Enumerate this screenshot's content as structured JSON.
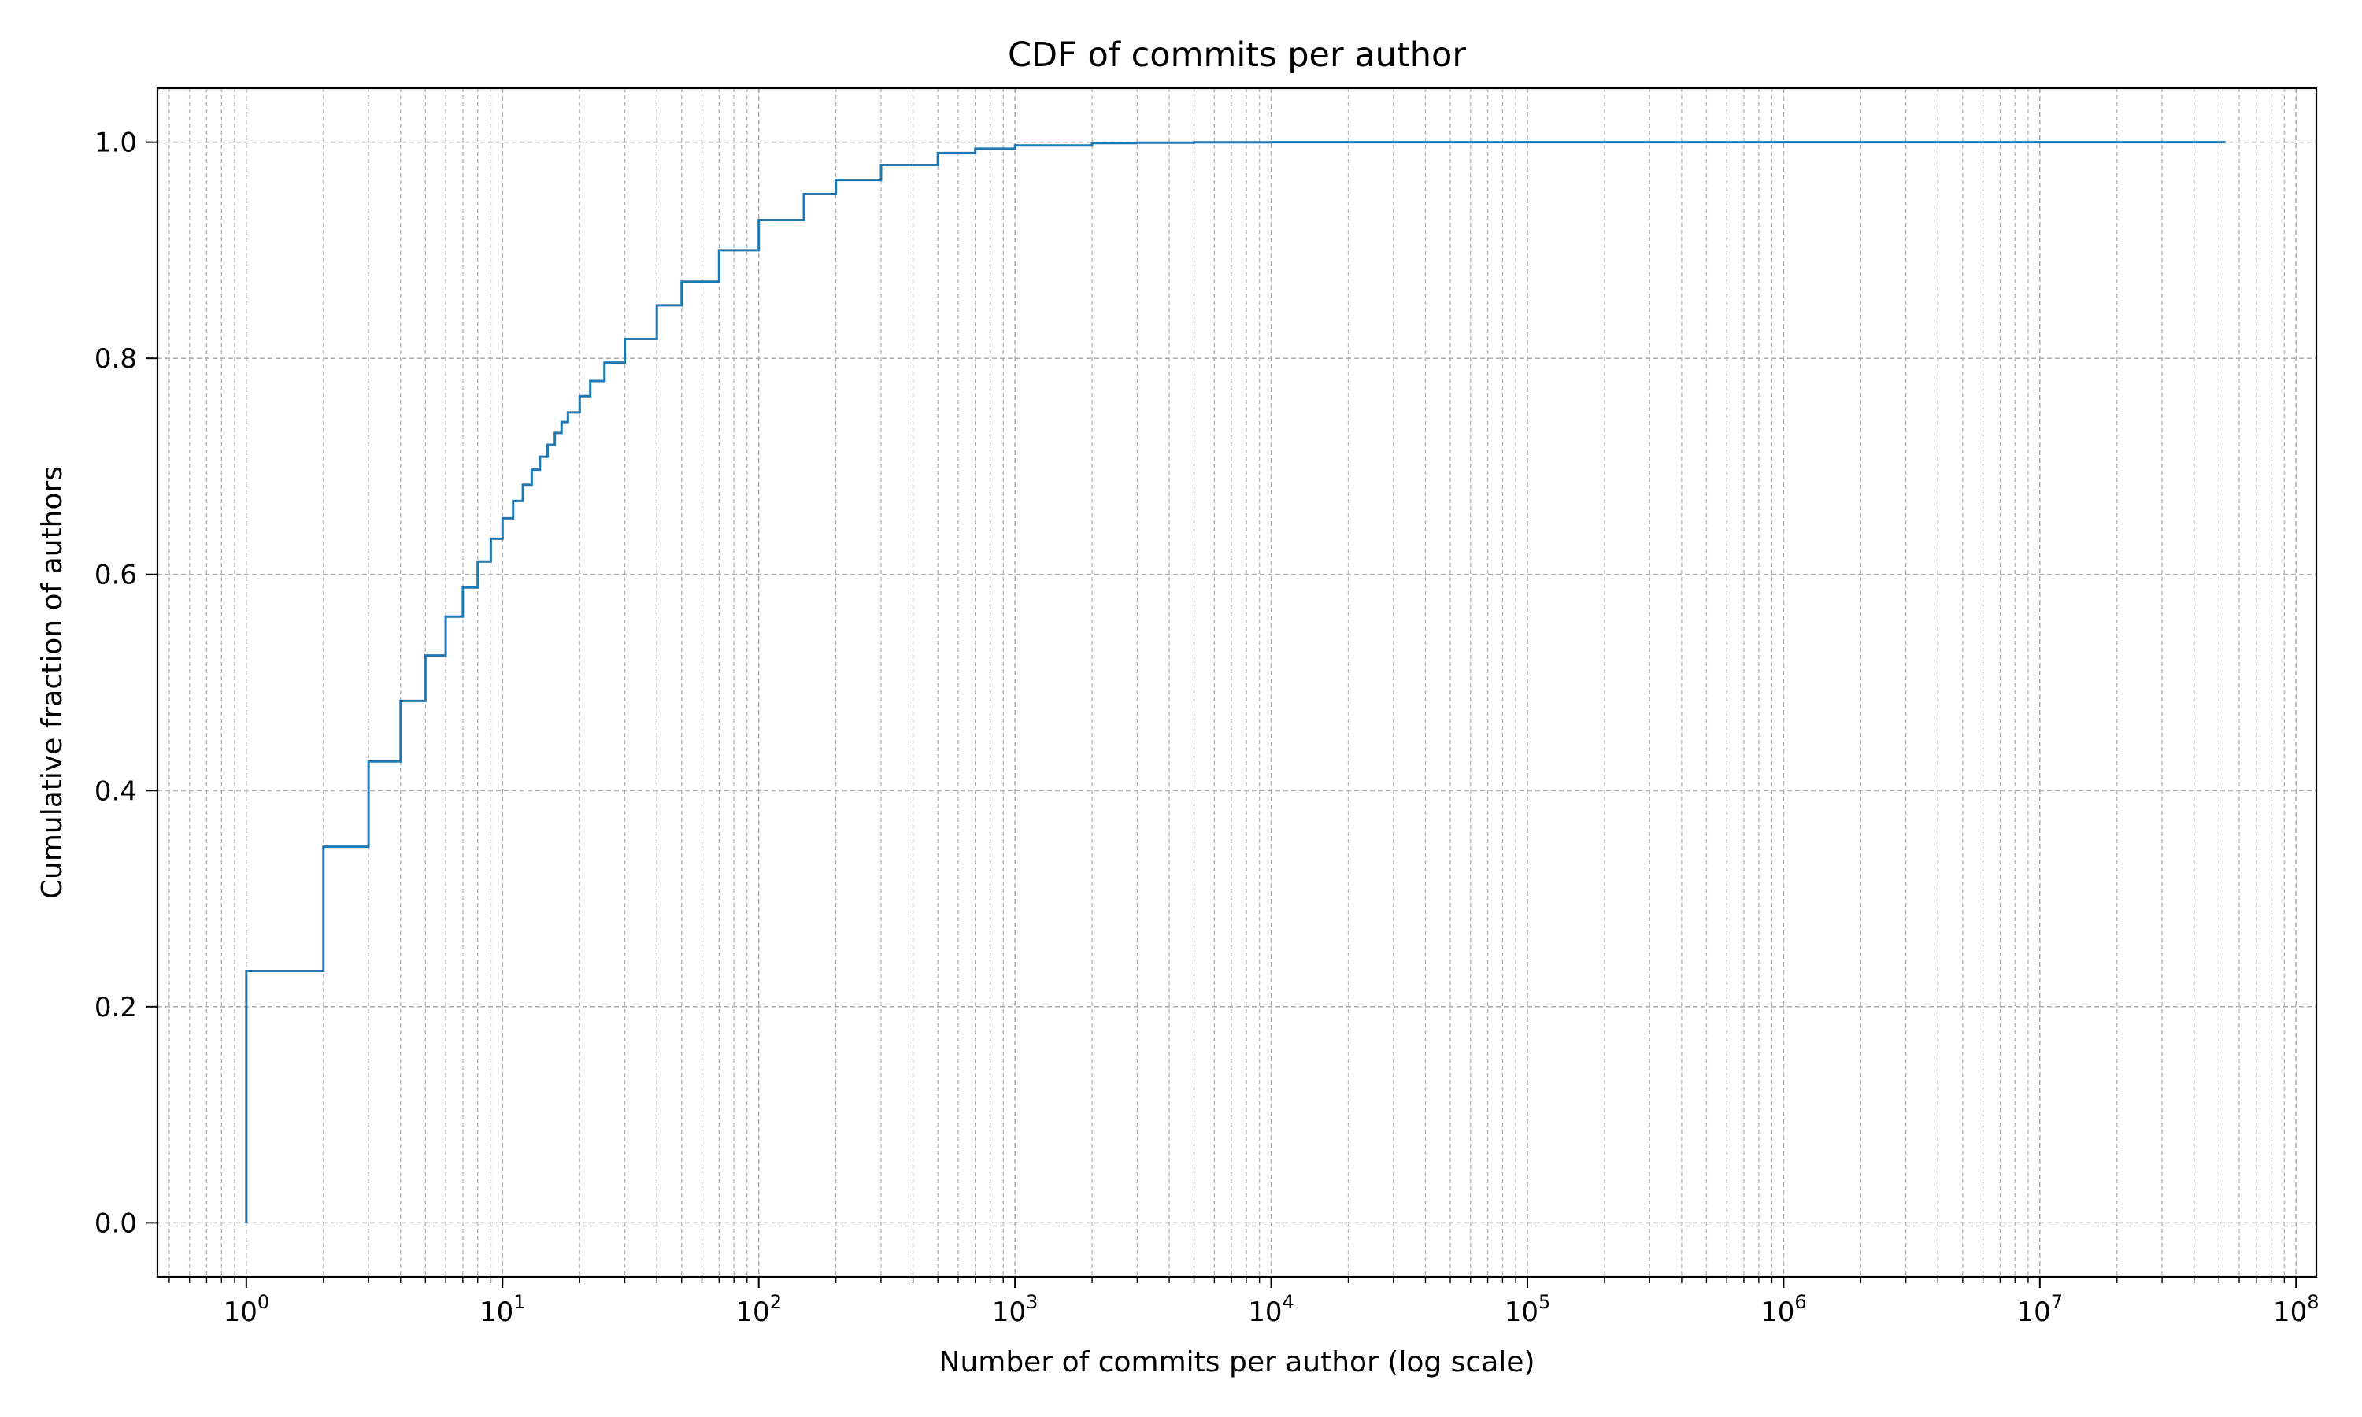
{
  "chart_data": {
    "type": "line",
    "title": "CDF of commits per author",
    "xlabel": "Number of commits per author (log scale)",
    "ylabel": "Cumulative fraction of authors",
    "x_scale": "log",
    "xlim": [
      0.45,
      120000000
    ],
    "ylim": [
      -0.05,
      1.05
    ],
    "x_ticks": [
      {
        "base": "10",
        "exp": "0"
      },
      {
        "base": "10",
        "exp": "1"
      },
      {
        "base": "10",
        "exp": "2"
      },
      {
        "base": "10",
        "exp": "3"
      },
      {
        "base": "10",
        "exp": "4"
      },
      {
        "base": "10",
        "exp": "5"
      },
      {
        "base": "10",
        "exp": "6"
      },
      {
        "base": "10",
        "exp": "7"
      },
      {
        "base": "10",
        "exp": "8"
      }
    ],
    "y_ticks": [
      "0.0",
      "0.2",
      "0.4",
      "0.6",
      "0.8",
      "1.0"
    ],
    "grid": true,
    "line_color": "#1f77b4",
    "series": [
      {
        "style": "step",
        "x": [
          1,
          2,
          3,
          4,
          5,
          6,
          7,
          8,
          9,
          10,
          11,
          12,
          13,
          14,
          15,
          16,
          17,
          18,
          20,
          22,
          25,
          30,
          40,
          50,
          70,
          100,
          150,
          200,
          300,
          500,
          700,
          1000,
          2000,
          3000,
          5000,
          10000,
          100000,
          1000000,
          10000000,
          53000000
        ],
        "y": [
          0.233,
          0.348,
          0.427,
          0.483,
          0.525,
          0.561,
          0.588,
          0.612,
          0.633,
          0.652,
          0.668,
          0.683,
          0.697,
          0.709,
          0.72,
          0.731,
          0.741,
          0.75,
          0.765,
          0.779,
          0.796,
          0.818,
          0.849,
          0.871,
          0.9,
          0.928,
          0.952,
          0.965,
          0.979,
          0.99,
          0.994,
          0.997,
          0.9992,
          0.9996,
          0.9999,
          1.0,
          1.0,
          1.0,
          1.0,
          1.0
        ]
      }
    ]
  }
}
